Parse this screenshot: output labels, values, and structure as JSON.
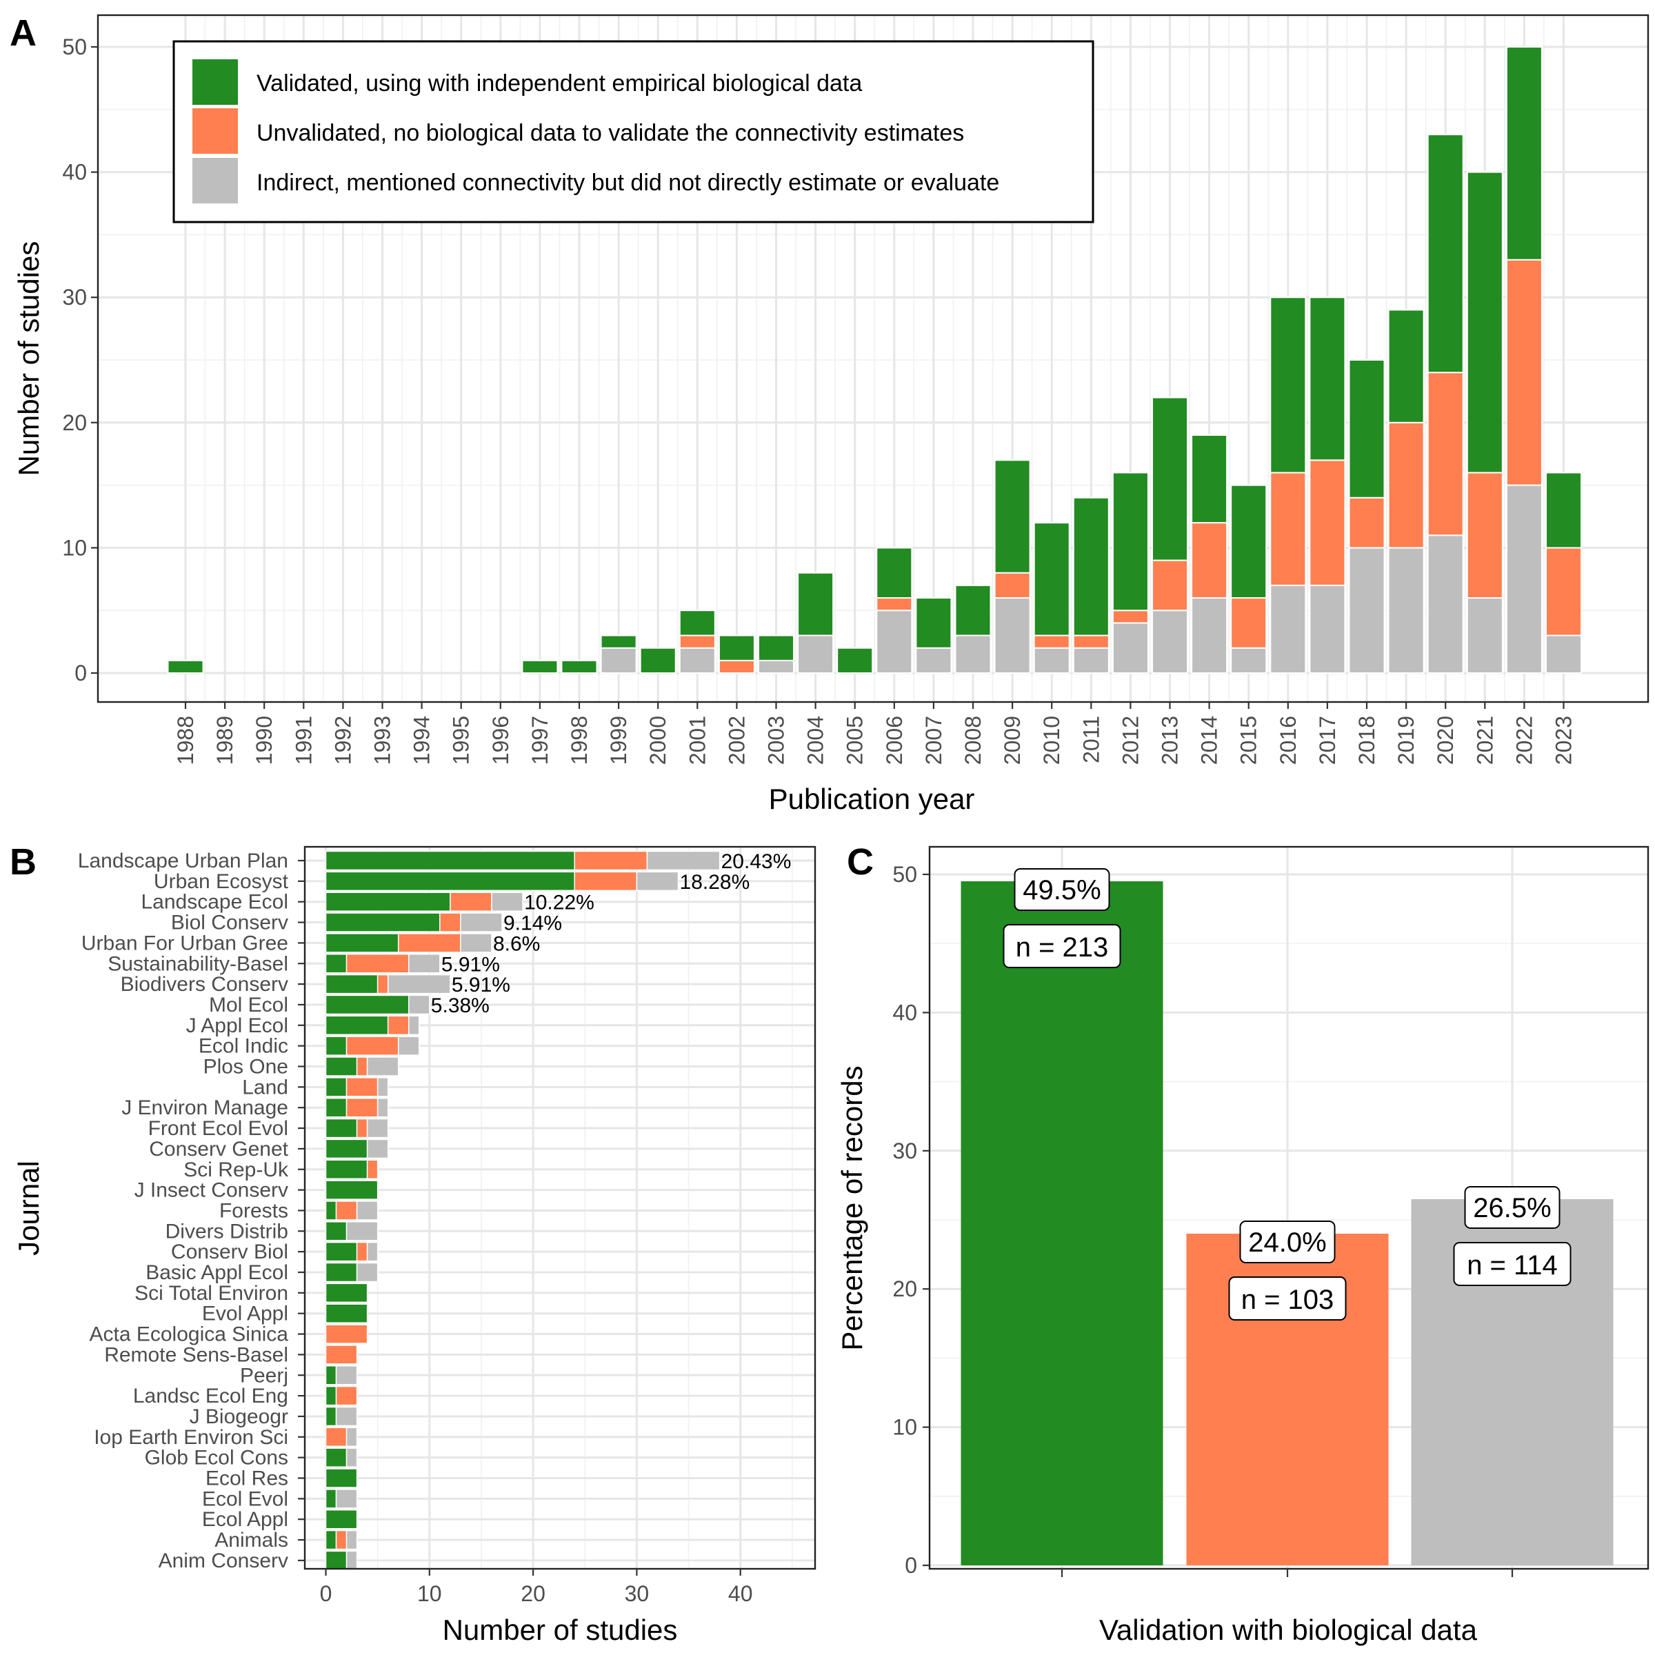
{
  "colors": {
    "validated": "#228B22",
    "unvalidated": "#FF7F50",
    "indirect": "#BEBEBE"
  },
  "chart_data": [
    {
      "panel": "A",
      "type": "bar",
      "stacked": true,
      "xlabel": "Publication year",
      "ylabel": "Number of studies",
      "ylim": [
        0,
        52
      ],
      "yticks": [
        0,
        10,
        20,
        30,
        40,
        50
      ],
      "grid": true,
      "legend_position": "top-left",
      "categories": [
        "1988",
        "1989",
        "1990",
        "1991",
        "1992",
        "1993",
        "1994",
        "1995",
        "1996",
        "1997",
        "1998",
        "1999",
        "2000",
        "2001",
        "2002",
        "2003",
        "2004",
        "2005",
        "2006",
        "2007",
        "2008",
        "2009",
        "2010",
        "2011",
        "2012",
        "2013",
        "2014",
        "2015",
        "2016",
        "2017",
        "2018",
        "2019",
        "2020",
        "2021",
        "2022",
        "2023"
      ],
      "series": [
        {
          "name": "Indirect, mentioned connectivity but did not directly estimate or evaluate",
          "key": "indirect",
          "values": [
            0,
            0,
            0,
            0,
            0,
            0,
            0,
            0,
            0,
            0,
            0,
            2,
            0,
            2,
            0,
            1,
            3,
            0,
            5,
            2,
            3,
            6,
            2,
            2,
            4,
            5,
            6,
            2,
            7,
            7,
            10,
            10,
            11,
            6,
            15,
            3
          ]
        },
        {
          "name": "Unvalidated, no biological data to validate the connectivity estimates",
          "key": "unvalidated",
          "values": [
            0,
            0,
            0,
            0,
            0,
            0,
            0,
            0,
            0,
            0,
            0,
            0,
            0,
            1,
            1,
            0,
            0,
            0,
            1,
            0,
            0,
            2,
            1,
            1,
            1,
            4,
            6,
            4,
            9,
            10,
            4,
            10,
            13,
            10,
            18,
            7
          ]
        },
        {
          "name": "Validated, using with independent empirical biological data",
          "key": "validated",
          "values": [
            1,
            0,
            0,
            0,
            0,
            0,
            0,
            0,
            0,
            1,
            1,
            1,
            2,
            2,
            2,
            2,
            5,
            2,
            4,
            4,
            4,
            9,
            9,
            11,
            11,
            13,
            7,
            9,
            14,
            13,
            11,
            9,
            19,
            24,
            17,
            6
          ]
        }
      ]
    },
    {
      "panel": "B",
      "type": "bar",
      "orientation": "horizontal",
      "stacked": true,
      "xlabel": "Number of studies",
      "ylabel": "Journal",
      "xlim": [
        -2.5,
        47
      ],
      "xticks": [
        0,
        10,
        20,
        30,
        40
      ],
      "grid": true,
      "categories": [
        "Landscape Urban Plan",
        "Urban Ecosyst",
        "Landscape Ecol",
        "Biol Conserv",
        "Urban For Urban Gree",
        "Sustainability-Basel",
        "Biodivers Conserv",
        "Mol Ecol",
        "J Appl Ecol",
        "Ecol Indic",
        "Plos One",
        "Land",
        "J Environ Manage",
        "Front Ecol Evol",
        "Conserv Genet",
        "Sci Rep-Uk",
        "J Insect Conserv",
        "Forests",
        "Divers Distrib",
        "Conserv Biol",
        "Basic Appl Ecol",
        "Sci Total Environ",
        "Evol Appl",
        "Acta Ecologica Sinica",
        "Remote Sens-Basel",
        "Peerj",
        "Landsc Ecol Eng",
        "J Biogeogr",
        "Iop Earth Environ Sci",
        "Glob Ecol Cons",
        "Ecol Res",
        "Ecol Evol",
        "Ecol Appl",
        "Animals",
        "Anim Conserv"
      ],
      "series": [
        {
          "name": "Validated",
          "key": "validated",
          "values": [
            24,
            24,
            12,
            11,
            7,
            2,
            5,
            8,
            6,
            2,
            3,
            2,
            2,
            3,
            4,
            4,
            5,
            1,
            2,
            3,
            3,
            4,
            4,
            0,
            0,
            1,
            1,
            1,
            0,
            2,
            3,
            1,
            3,
            1,
            2
          ]
        },
        {
          "name": "Unvalidated",
          "key": "unvalidated",
          "values": [
            7,
            6,
            4,
            2,
            6,
            6,
            1,
            0,
            2,
            5,
            1,
            3,
            3,
            1,
            0,
            1,
            0,
            2,
            0,
            1,
            0,
            0,
            0,
            4,
            3,
            0,
            2,
            0,
            2,
            0,
            0,
            0,
            0,
            1,
            0
          ]
        },
        {
          "name": "Indirect",
          "key": "indirect",
          "values": [
            7,
            4,
            3,
            4,
            3,
            3,
            6,
            2,
            1,
            2,
            3,
            1,
            1,
            2,
            2,
            0,
            0,
            2,
            3,
            1,
            2,
            0,
            0,
            0,
            0,
            2,
            0,
            2,
            1,
            1,
            0,
            2,
            0,
            1,
            1
          ]
        }
      ],
      "percent_labels": [
        "20.43%",
        "18.28%",
        "10.22%",
        "9.14%",
        "8.6%",
        "5.91%",
        "5.91%",
        "5.38%"
      ]
    },
    {
      "panel": "C",
      "type": "bar",
      "xlabel": "Validation with biological data",
      "ylabel": "Percentage of records",
      "ylim": [
        0,
        51.5
      ],
      "yticks": [
        0,
        10,
        20,
        30,
        40,
        50
      ],
      "grid": true,
      "categories": [
        "Validated",
        "Unvalidated",
        "Indirect"
      ],
      "values": [
        49.5,
        24.0,
        26.5
      ],
      "value_labels": [
        "49.5%",
        "24.0%",
        "26.5%"
      ],
      "n_labels": [
        "n = 213",
        "n = 103",
        "n = 114"
      ]
    }
  ],
  "panel_labels": [
    "A",
    "B",
    "C"
  ]
}
